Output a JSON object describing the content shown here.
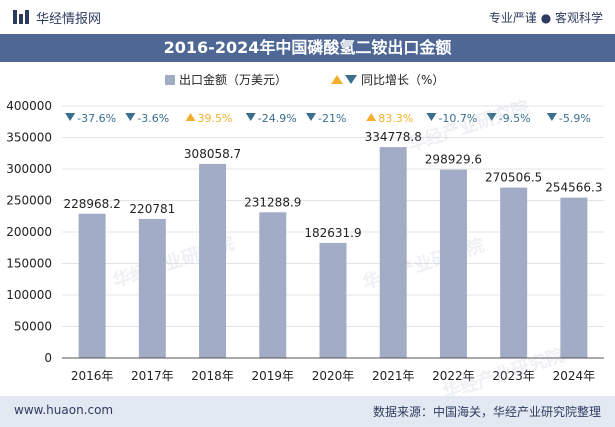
{
  "header": {
    "brand": "华经情报网",
    "slogan": "专业严谨 ● 客观科学"
  },
  "title": "2016-2024年中国磷酸氢二铵出口金额",
  "footer": {
    "left": "www.huaon.com",
    "right": "数据来源：中国海关，华经产业研究院整理"
  },
  "watermark": "华经产业研究院",
  "colors": {
    "bar": "#a2acc6",
    "down": "#3a6f8f",
    "up": "#f2b02e",
    "header_band": "#4e6795",
    "footer_band": "#e3e9f3"
  },
  "chart_data": {
    "type": "bar",
    "categories": [
      "2016年",
      "2017年",
      "2018年",
      "2019年",
      "2020年",
      "2021年",
      "2022年",
      "2023年",
      "2024年"
    ],
    "series": [
      {
        "name": "出口金额（万美元）",
        "values": [
          228968.2,
          220781,
          308058.7,
          231288.9,
          182631.9,
          334778.8,
          298929.6,
          270506.5,
          254566.3
        ],
        "labels": [
          "228968.2",
          "220781",
          "308058.7",
          "231288.9",
          "182631.9",
          "334778.8",
          "298929.6",
          "270506.5",
          "254566.3"
        ]
      },
      {
        "name": "同比增长（%）",
        "values": [
          -37.6,
          -3.6,
          39.5,
          -24.9,
          -21,
          83.3,
          -10.7,
          -9.5,
          -5.9
        ],
        "labels": [
          "-37.6%",
          "-3.6%",
          "39.5%",
          "-24.9%",
          "-21%",
          "83.3%",
          "-10.7%",
          "-9.5%",
          "-5.9%"
        ]
      }
    ],
    "yticks": [
      "0",
      "50000",
      "100000",
      "150000",
      "200000",
      "250000",
      "300000",
      "350000",
      "400000"
    ],
    "ylim": [
      0,
      400000
    ],
    "legend_position": "top"
  }
}
